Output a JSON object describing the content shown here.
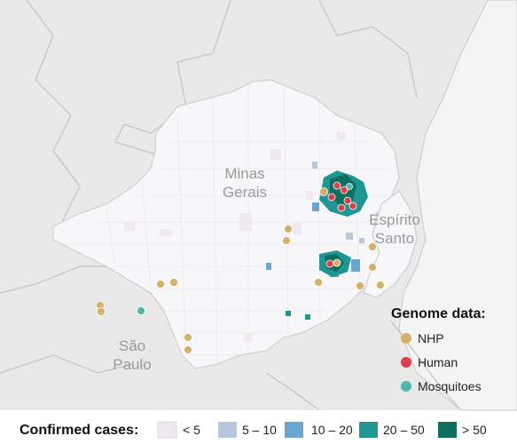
{
  "colors": {
    "background": "#e9e9e9",
    "state_fill": "#f4f4f4",
    "border": "#c8c8c8",
    "nhp": "#d4b06a",
    "human": "#d8404e",
    "mosquitoes": "#4fb8a8",
    "cases_lt5": "#f1e8f4",
    "cases_5_10": "#b7c7e0",
    "cases_10_20": "#6aa6d2",
    "cases_20_50": "#1f9594",
    "cases_gt50": "#0f6f5e"
  },
  "regions": {
    "minas_gerais": [
      "Minas",
      "Gerais"
    ],
    "espirito_santo": [
      "Espírito",
      "Santo"
    ],
    "sao_paulo": [
      "São",
      "Paulo"
    ]
  },
  "genome_legend": {
    "title": "Genome data:",
    "items": [
      {
        "label": "NHP",
        "icon": "circle-icon",
        "color_key": "nhp"
      },
      {
        "label": "Human",
        "icon": "circle-icon",
        "color_key": "human"
      },
      {
        "label": "Mosquitoes",
        "icon": "circle-icon",
        "color_key": "mosquitoes"
      }
    ]
  },
  "cases_legend": {
    "title": "Confirmed cases:",
    "items": [
      {
        "label": "< 5",
        "color_key": "cases_lt5"
      },
      {
        "label": "5 – 10",
        "color_key": "cases_5_10"
      },
      {
        "label": "10 – 20",
        "color_key": "cases_10_20"
      },
      {
        "label": "20 – 50",
        "color_key": "cases_20_50"
      },
      {
        "label": "> 50",
        "color_key": "cases_gt50"
      }
    ]
  }
}
